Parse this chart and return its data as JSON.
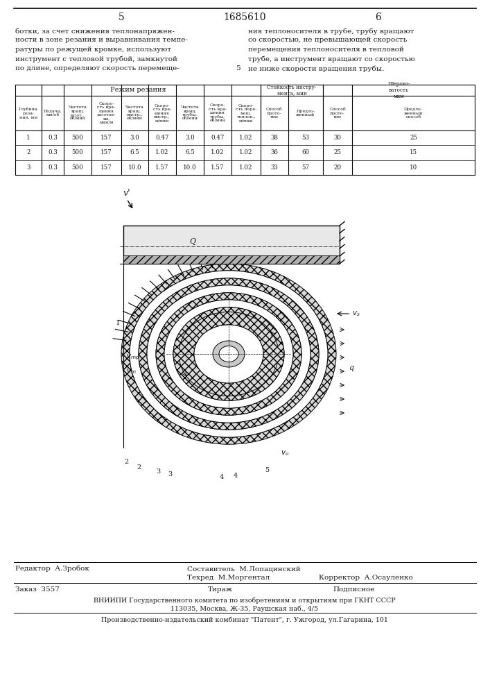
{
  "page_number_left": "5",
  "patent_number": "1685610",
  "page_number_right": "6",
  "left_text": [
    "ботки, за счет снижения теплонапряжен-",
    "ности в зоне резания и выравнивания темпе-",
    "ратуры по режущей кромке, используют",
    "инструмент с тепловой трубой, замкнутой",
    "по длине, определяют скорость перемеще-"
  ],
  "right_text": [
    "ния теплоносителя в трубе, трубу вращают",
    "со скоростью, не превышающей скорость",
    "перемещения теплоносителя в тепловой",
    "трубе, а инструмент вращают со скоростью",
    "не ниже скорости вращения трубы."
  ],
  "table_header_main": "Режим резания",
  "table_data": [
    [
      1,
      0.3,
      500,
      157,
      3.0,
      0.47,
      3.0,
      0.47,
      1.02,
      38,
      53,
      30,
      25
    ],
    [
      2,
      0.3,
      500,
      157,
      6.5,
      1.02,
      6.5,
      1.02,
      1.02,
      36,
      60,
      25,
      15
    ],
    [
      3,
      0.3,
      500,
      157,
      10.0,
      1.57,
      10.0,
      1.57,
      1.02,
      33,
      57,
      20,
      10
    ]
  ],
  "footer_left_editor": "Редактор  А.Зробок",
  "footer_center_line1": "Составитель  М.Лопацинский",
  "footer_center_line2": "Техред  М.Моргентал",
  "footer_right": "Корректор  А.Осауленко",
  "footer_order": "Заказ  3557",
  "footer_tirazh": "Тираж",
  "footer_podpisnoe": "Подписное",
  "footer_vniiipi": "ВНИИПИ Государственного комитета по изобретениям и открытиям при ГКНТ СССР",
  "footer_address": "113035, Москва, Ж-35, Раушская наб., 4/5",
  "footer_plant": "Производственно-издательский комбинат \"Патент\", г. Ужгород, ул.Гагарина, 101",
  "text_color": "#1a1a1a"
}
